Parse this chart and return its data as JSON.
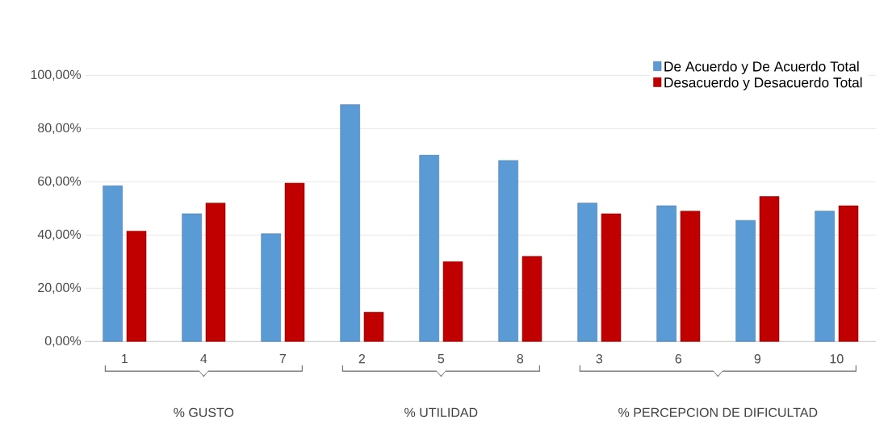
{
  "chart_data": {
    "type": "bar",
    "categories": [
      "1",
      "4",
      "7",
      "2",
      "5",
      "8",
      "3",
      "6",
      "9",
      "10"
    ],
    "series": [
      {
        "name": "De Acuerdo y De Acuerdo Total",
        "color": "#5b9bd5",
        "values": [
          58.5,
          48,
          40.5,
          89,
          70,
          68,
          52,
          51,
          45.5,
          49
        ]
      },
      {
        "name": "Desacuerdo y Desacuerdo Total",
        "color": "#c00000",
        "values": [
          41.5,
          52,
          59.5,
          11,
          30,
          32,
          48,
          49,
          54.5,
          51
        ]
      }
    ],
    "ylim": [
      0,
      100
    ],
    "yticks": [
      {
        "value": 0,
        "label": "0,00%"
      },
      {
        "value": 20,
        "label": "20,00%"
      },
      {
        "value": 40,
        "label": "40,00%"
      },
      {
        "value": 60,
        "label": "60,00%"
      },
      {
        "value": 80,
        "label": "80,00%"
      },
      {
        "value": 100,
        "label": "100,00%"
      }
    ],
    "grid": "y",
    "legend": "top right",
    "annotations": [
      "% GUSTO",
      "% UTILIDAD",
      "% PERCEPCION DE DIFICULTAD"
    ]
  }
}
